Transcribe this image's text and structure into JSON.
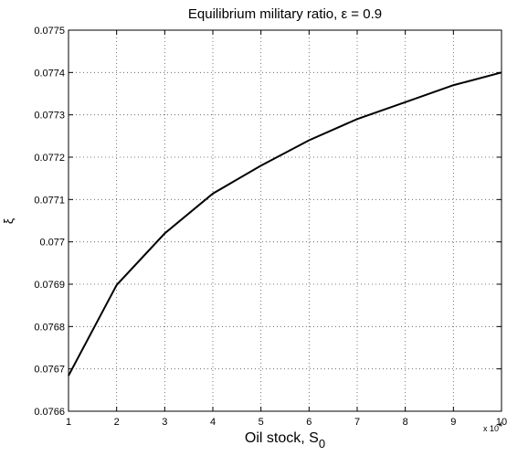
{
  "chart_data": {
    "type": "line",
    "title": "Equilibrium military ratio, ε = 0.9",
    "x_label": "Oil stock, S",
    "x_label_subscript": "0",
    "y_label": "ξ",
    "x_multiplier": "x 10",
    "x_multiplier_exponent": "4",
    "x": [
      1,
      2,
      3,
      4,
      5,
      6,
      7,
      8,
      9,
      10
    ],
    "series": [
      {
        "color": "#000000",
        "values": [
          0.076684,
          0.076898,
          0.07702,
          0.077114,
          0.07718,
          0.07724,
          0.07729,
          0.07733,
          0.07737,
          0.0774
        ]
      }
    ],
    "xlim": [
      1,
      10
    ],
    "xticks": [
      1,
      2,
      3,
      4,
      5,
      6,
      7,
      8,
      9,
      10
    ],
    "ylim": [
      0.0766,
      0.0775
    ],
    "yticks": [
      0.0766,
      0.0767,
      0.0768,
      0.0769,
      0.077,
      0.0771,
      0.0772,
      0.0773,
      0.0774,
      0.0775
    ],
    "grid": true
  }
}
